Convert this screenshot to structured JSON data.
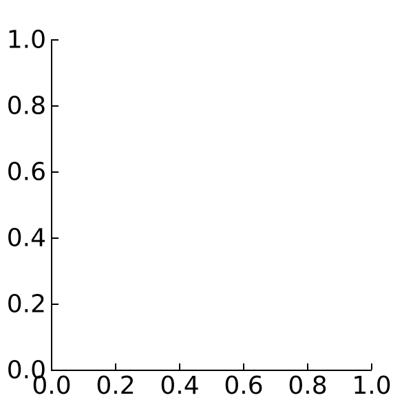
{
  "figure": {
    "background": "#ffffff",
    "title": ""
  },
  "chart_data": {
    "type": "line",
    "title": "",
    "xlabel": "",
    "ylabel": "",
    "series": [],
    "xlim": [
      0.0,
      1.0
    ],
    "ylim": [
      0.0,
      1.0
    ],
    "x_ticks": [
      0.0,
      0.2,
      0.4,
      0.6,
      0.8,
      1.0
    ],
    "x_tick_labels": [
      "0.0",
      "0.2",
      "0.4",
      "0.6",
      "0.8",
      "1.0"
    ],
    "y_ticks": [
      0.0,
      0.2,
      0.4,
      0.6,
      0.8,
      1.0
    ],
    "y_tick_labels": [
      "0.0",
      "0.2",
      "0.4",
      "0.6",
      "0.8",
      "1.0"
    ],
    "grid": false,
    "legend": null,
    "tick_direction": "in",
    "spines": [
      "left",
      "bottom"
    ],
    "axis_color": "#000000",
    "tick_label_color": "#000000"
  }
}
